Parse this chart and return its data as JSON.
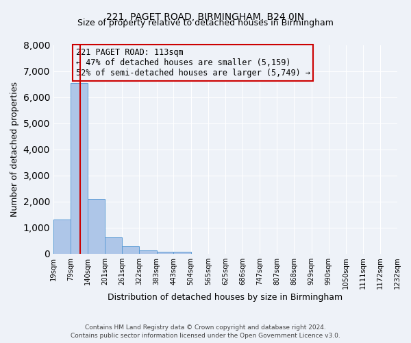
{
  "title": "221, PAGET ROAD, BIRMINGHAM, B24 0JN",
  "subtitle": "Size of property relative to detached houses in Birmingham",
  "xlabel": "Distribution of detached houses by size in Birmingham",
  "ylabel": "Number of detached properties",
  "bar_heights": [
    1300,
    6550,
    2100,
    620,
    290,
    120,
    80,
    80,
    0,
    0,
    0,
    0,
    0,
    0,
    0,
    0,
    0,
    0,
    0,
    0
  ],
  "bin_edges": [
    19,
    79,
    140,
    201,
    261,
    322,
    383,
    443,
    504,
    565,
    625,
    686,
    747,
    807,
    868,
    929,
    990,
    1050,
    1111,
    1172,
    1232
  ],
  "tick_labels": [
    "19sqm",
    "79sqm",
    "140sqm",
    "201sqm",
    "261sqm",
    "322sqm",
    "383sqm",
    "443sqm",
    "504sqm",
    "565sqm",
    "625sqm",
    "686sqm",
    "747sqm",
    "807sqm",
    "868sqm",
    "929sqm",
    "990sqm",
    "1050sqm",
    "1111sqm",
    "1172sqm",
    "1232sqm"
  ],
  "bar_color": "#aec6e8",
  "bar_edge_color": "#5b9bd5",
  "vline_x": 113,
  "vline_color": "#cc0000",
  "ylim": [
    0,
    8000
  ],
  "yticks": [
    0,
    1000,
    2000,
    3000,
    4000,
    5000,
    6000,
    7000,
    8000
  ],
  "annotation_title": "221 PAGET ROAD: 113sqm",
  "annotation_line1": "← 47% of detached houses are smaller (5,159)",
  "annotation_line2": "52% of semi-detached houses are larger (5,749) →",
  "annotation_box_color": "#cc0000",
  "footer1": "Contains HM Land Registry data © Crown copyright and database right 2024.",
  "footer2": "Contains public sector information licensed under the Open Government Licence v3.0.",
  "bg_color": "#eef2f8",
  "grid_color": "#ffffff"
}
